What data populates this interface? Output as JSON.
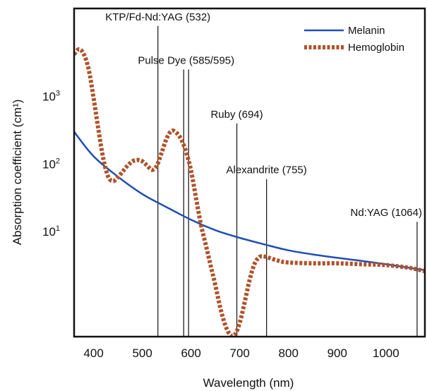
{
  "chart_data": {
    "type": "line",
    "title": "",
    "xlabel": "Wavelength (nm)",
    "ylabel": "Absorption coefficient (cm¹)",
    "xlim": [
      360,
      1080
    ],
    "y_scale": "log",
    "ylim": [
      0.28,
      20000
    ],
    "grid": false,
    "legend_position": "top-right",
    "x_ticks": [
      {
        "value": 400,
        "label": "400"
      },
      {
        "value": 500,
        "label": "500"
      },
      {
        "value": 600,
        "label": "600"
      },
      {
        "value": 700,
        "label": "700"
      },
      {
        "value": 800,
        "label": "800"
      },
      {
        "value": 900,
        "label": "900"
      },
      {
        "value": 1000,
        "label": "1000"
      }
    ],
    "y_ticks": [
      {
        "value": 10,
        "base": "10",
        "exp": "1"
      },
      {
        "value": 100,
        "base": "10",
        "exp": "2"
      },
      {
        "value": 1000,
        "base": "10",
        "exp": "3"
      }
    ],
    "lasers": [
      {
        "label": "KTP/Fd-Nd:YAG (532)",
        "wavelengths": [
          532
        ],
        "peak": 11000
      },
      {
        "label": "Pulse Dye (585/595)",
        "wavelengths": [
          585,
          595
        ],
        "peak": 2500
      },
      {
        "label": "Ruby (694)",
        "wavelengths": [
          694
        ],
        "peak": 400
      },
      {
        "label": "Alexandrite (755)",
        "wavelengths": [
          755
        ],
        "peak": 60
      },
      {
        "label": "Nd:YAG (1064)",
        "wavelengths": [
          1064
        ],
        "peak": 14
      }
    ],
    "series": [
      {
        "name": "Melanin",
        "color": "#1f4fb5",
        "style": "solid",
        "x": [
          360,
          400,
          450,
          500,
          550,
          600,
          650,
          700,
          750,
          800,
          850,
          900,
          950,
          1000,
          1050,
          1080
        ],
        "y": [
          300,
          130,
          65,
          36,
          23,
          15,
          10.5,
          8.1,
          6.5,
          5.3,
          4.6,
          4.1,
          3.7,
          3.3,
          2.9,
          2.7
        ]
      },
      {
        "name": "Hemoglobin",
        "color": "#b0522a",
        "style": "dotted",
        "x": [
          360,
          370,
          380,
          390,
          400,
          410,
          420,
          430,
          440,
          450,
          460,
          470,
          480,
          490,
          500,
          510,
          520,
          530,
          540,
          550,
          560,
          570,
          580,
          590,
          600,
          610,
          620,
          630,
          640,
          650,
          660,
          670,
          680,
          690,
          700,
          710,
          720,
          730,
          740,
          750,
          760,
          780,
          800,
          850,
          900,
          950,
          1000,
          1050,
          1080
        ],
        "y": [
          4200,
          5000,
          4200,
          2500,
          950,
          320,
          120,
          65,
          56,
          64,
          78,
          95,
          110,
          115,
          110,
          95,
          82,
          95,
          150,
          240,
          310,
          290,
          230,
          150,
          80,
          32,
          13,
          6.5,
          3.2,
          1.6,
          0.75,
          0.42,
          0.3,
          0.3,
          0.45,
          0.9,
          1.9,
          3.3,
          4.2,
          4.3,
          4.1,
          3.7,
          3.5,
          3.4,
          3.4,
          3.3,
          3.2,
          2.9,
          2.6
        ]
      }
    ]
  }
}
